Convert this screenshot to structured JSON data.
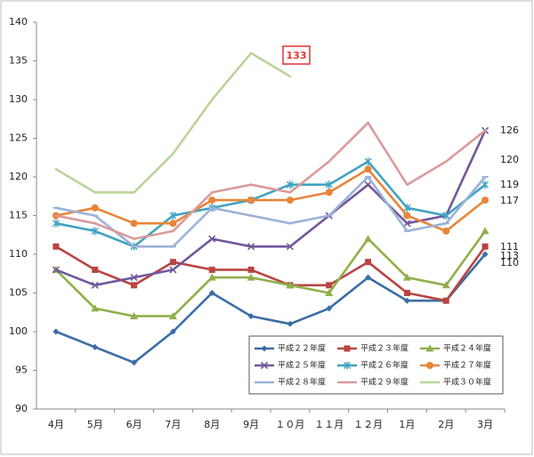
{
  "chart_data": {
    "type": "line",
    "categories": [
      "4月",
      "5月",
      "6月",
      "7月",
      "8月",
      "9月",
      "１０月",
      "１１月",
      "１２月",
      "1月",
      "2月",
      "3月"
    ],
    "ylim": [
      90,
      140
    ],
    "yticks": [
      90,
      95,
      100,
      105,
      110,
      115,
      120,
      125,
      130,
      135,
      140
    ],
    "series": [
      {
        "name": "平成２２年度",
        "color": "#3b6ea5",
        "marker": "diamond",
        "values": [
          100,
          98,
          96,
          100,
          105,
          102,
          101,
          103,
          107,
          104,
          104,
          110
        ]
      },
      {
        "name": "平成２３年度",
        "color": "#b94441",
        "marker": "square",
        "values": [
          111,
          108,
          106,
          109,
          108,
          108,
          106,
          106,
          109,
          105,
          104,
          111
        ]
      },
      {
        "name": "平成２４年度",
        "color": "#8fb04a",
        "marker": "triangle",
        "values": [
          108,
          103,
          102,
          102,
          107,
          107,
          106,
          105,
          112,
          107,
          106,
          113
        ]
      },
      {
        "name": "平成２５年度",
        "color": "#71589a",
        "marker": "x",
        "values": [
          108,
          106,
          107,
          108,
          112,
          111,
          111,
          115,
          119,
          114,
          115,
          126
        ]
      },
      {
        "name": "平成２６年度",
        "color": "#3fa3c0",
        "marker": "star",
        "values": [
          114,
          113,
          111,
          115,
          116,
          117,
          119,
          119,
          122,
          116,
          115,
          119
        ]
      },
      {
        "name": "平成２７年度",
        "color": "#e8853a",
        "marker": "circle",
        "values": [
          115,
          116,
          114,
          114,
          117,
          117,
          117,
          118,
          121,
          115,
          113,
          117
        ]
      },
      {
        "name": "平成２８年度",
        "color": "#9cb2d8",
        "marker": "dash",
        "values": [
          116,
          115,
          111,
          111,
          116,
          115,
          114,
          115,
          120,
          113,
          114,
          120
        ]
      },
      {
        "name": "平成２９年度",
        "color": "#dc9a9a",
        "marker": "none",
        "values": [
          115,
          114,
          112,
          113,
          118,
          119,
          118,
          122,
          127,
          119,
          122,
          126
        ]
      },
      {
        "name": "平成３０年度",
        "color": "#b9d49a",
        "marker": "none",
        "values": [
          121,
          118,
          118,
          123,
          130,
          136,
          133,
          null,
          null,
          null,
          null,
          null
        ]
      }
    ],
    "highlight_label": 133,
    "end_labels": [
      126,
      120,
      119,
      117,
      113,
      111,
      110
    ]
  }
}
